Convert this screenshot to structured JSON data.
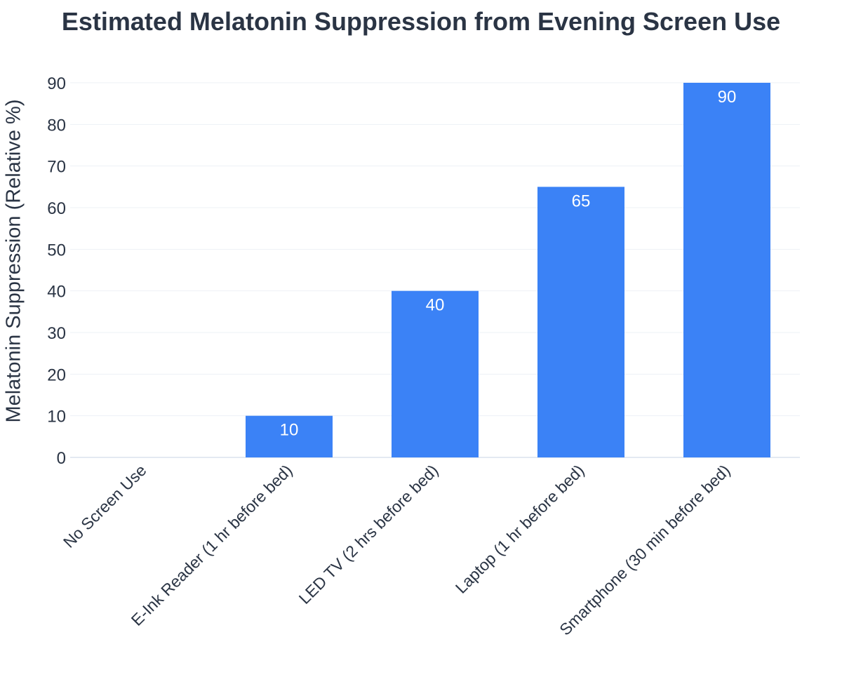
{
  "chart_data": {
    "type": "bar",
    "title": "Estimated Melatonin Suppression from Evening Screen Use",
    "xlabel": "",
    "ylabel": "Melatonin Suppression (Relative %)",
    "categories": [
      "No Screen Use",
      "E-Ink Reader (1 hr before bed)",
      "LED TV (2 hrs before bed)",
      "Laptop (1 hr before bed)",
      "Smartphone (30 min before bed)"
    ],
    "values": [
      0,
      10,
      40,
      65,
      90
    ],
    "data_labels": [
      "",
      "10",
      "40",
      "65",
      "90"
    ],
    "ylim": [
      0,
      90
    ],
    "yticks": [
      0,
      10,
      20,
      30,
      40,
      50,
      60,
      70,
      80,
      90
    ],
    "grid": true,
    "legend": "none",
    "bar_color": "#3b82f6"
  }
}
